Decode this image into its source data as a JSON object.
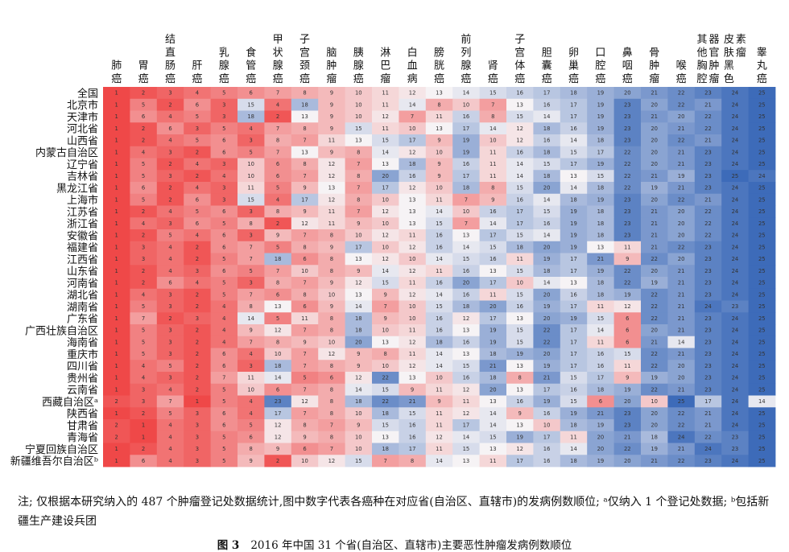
{
  "chart_data": {
    "type": "heatmap",
    "title": "2016 年中国 31 个省(自治区、直辖市)主要恶性肿瘤发病例数顺位",
    "figure_label": "图 3",
    "columns": [
      "肺癌",
      "胃癌",
      "结直肠癌",
      "肝癌",
      "乳腺癌",
      "食管癌",
      "甲状腺癌",
      "子宫颈癌",
      "脑肿瘤",
      "胰腺癌",
      "淋巴瘤",
      "白血病",
      "膀胱癌",
      "前列腺癌",
      "肾癌",
      "子宫体癌",
      "胆囊癌",
      "卵巢癌",
      "口腔癌",
      "鼻咽癌",
      "骨肿瘤",
      "喉癌",
      "其他胸腔器官肿瘤",
      "皮肤黑色素瘤",
      "睾丸癌"
    ],
    "rows": [
      "全国",
      "北京市",
      "天津市",
      "河北省",
      "山西省",
      "内蒙古自治区",
      "辽宁省",
      "吉林省",
      "黑龙江省",
      "上海市",
      "江苏省",
      "浙江省",
      "安徽省",
      "福建省",
      "江西省",
      "山东省",
      "河南省",
      "湖北省",
      "湖南省",
      "广东省",
      "广西壮族自治区",
      "海南省",
      "重庆市",
      "四川省",
      "贵州省",
      "云南省",
      "西藏自治区ᵃ",
      "陕西省",
      "甘肃省",
      "青海省",
      "宁夏回族自治区",
      "新疆维吾尔自治区ᵇ"
    ],
    "values": [
      [
        1,
        2,
        3,
        4,
        5,
        6,
        7,
        8,
        9,
        10,
        11,
        12,
        13,
        14,
        15,
        16,
        17,
        18,
        19,
        20,
        21,
        22,
        23,
        24,
        25
      ],
      [
        1,
        5,
        2,
        6,
        3,
        15,
        4,
        18,
        9,
        10,
        11,
        14,
        8,
        10,
        7,
        13,
        16,
        17,
        19,
        23,
        20,
        22,
        21,
        24,
        25
      ],
      [
        1,
        6,
        4,
        5,
        3,
        18,
        2,
        13,
        9,
        10,
        12,
        7,
        11,
        16,
        8,
        15,
        14,
        17,
        19,
        23,
        21,
        20,
        22,
        24,
        25
      ],
      [
        1,
        2,
        6,
        3,
        5,
        4,
        7,
        8,
        9,
        15,
        11,
        10,
        13,
        17,
        14,
        12,
        18,
        16,
        19,
        23,
        20,
        21,
        22,
        24,
        25
      ],
      [
        1,
        2,
        4,
        5,
        6,
        3,
        8,
        7,
        11,
        13,
        15,
        17,
        9,
        19,
        10,
        12,
        16,
        14,
        18,
        23,
        20,
        22,
        21,
        24,
        25
      ],
      [
        1,
        4,
        3,
        2,
        6,
        5,
        7,
        13,
        9,
        8,
        14,
        12,
        10,
        19,
        11,
        16,
        18,
        15,
        17,
        22,
        20,
        21,
        23,
        24,
        25
      ],
      [
        1,
        5,
        2,
        4,
        3,
        10,
        6,
        8,
        12,
        7,
        13,
        18,
        9,
        16,
        11,
        14,
        15,
        17,
        19,
        22,
        20,
        21,
        23,
        24,
        25
      ],
      [
        1,
        5,
        3,
        2,
        4,
        10,
        6,
        7,
        12,
        8,
        20,
        16,
        9,
        17,
        11,
        14,
        18,
        13,
        15,
        22,
        21,
        19,
        23,
        25,
        24
      ],
      [
        1,
        6,
        2,
        4,
        3,
        11,
        5,
        9,
        13,
        7,
        17,
        12,
        10,
        18,
        8,
        15,
        20,
        14,
        18,
        22,
        19,
        21,
        23,
        24,
        25
      ],
      [
        1,
        5,
        2,
        6,
        3,
        15,
        4,
        17,
        12,
        8,
        10,
        13,
        11,
        7,
        9,
        16,
        14,
        18,
        19,
        23,
        20,
        22,
        21,
        24,
        25
      ],
      [
        1,
        2,
        4,
        5,
        6,
        3,
        8,
        9,
        11,
        7,
        12,
        13,
        14,
        10,
        16,
        17,
        15,
        19,
        18,
        23,
        21,
        20,
        22,
        24,
        25
      ],
      [
        1,
        4,
        3,
        6,
        5,
        8,
        2,
        12,
        11,
        9,
        10,
        13,
        15,
        7,
        14,
        17,
        16,
        19,
        18,
        23,
        21,
        20,
        22,
        24,
        25
      ],
      [
        1,
        2,
        5,
        4,
        6,
        3,
        9,
        7,
        8,
        10,
        12,
        11,
        16,
        13,
        17,
        15,
        14,
        19,
        18,
        23,
        21,
        20,
        22,
        24,
        25
      ],
      [
        1,
        3,
        4,
        2,
        6,
        7,
        5,
        8,
        9,
        17,
        10,
        12,
        16,
        14,
        15,
        18,
        20,
        19,
        13,
        11,
        21,
        22,
        23,
        24,
        25
      ],
      [
        1,
        3,
        4,
        2,
        5,
        7,
        18,
        6,
        8,
        13,
        12,
        10,
        14,
        15,
        16,
        11,
        19,
        17,
        21,
        9,
        22,
        20,
        23,
        24,
        25
      ],
      [
        1,
        2,
        4,
        3,
        6,
        5,
        7,
        10,
        8,
        9,
        14,
        12,
        11,
        16,
        13,
        15,
        18,
        17,
        19,
        22,
        20,
        21,
        23,
        24,
        25
      ],
      [
        1,
        2,
        6,
        4,
        5,
        3,
        8,
        7,
        9,
        12,
        15,
        11,
        16,
        20,
        17,
        10,
        14,
        13,
        18,
        22,
        19,
        21,
        23,
        24,
        25
      ],
      [
        1,
        4,
        3,
        2,
        5,
        7,
        6,
        8,
        10,
        13,
        9,
        12,
        14,
        16,
        11,
        15,
        20,
        16,
        18,
        19,
        22,
        21,
        23,
        24,
        25
      ],
      [
        1,
        5,
        3,
        2,
        4,
        8,
        13,
        6,
        9,
        14,
        7,
        10,
        15,
        18,
        20,
        16,
        19,
        17,
        11,
        12,
        22,
        21,
        24,
        23,
        25
      ],
      [
        1,
        7,
        2,
        3,
        4,
        14,
        5,
        11,
        8,
        18,
        9,
        10,
        16,
        12,
        17,
        13,
        20,
        19,
        15,
        6,
        22,
        21,
        23,
        24,
        25
      ],
      [
        1,
        5,
        3,
        2,
        4,
        9,
        12,
        7,
        8,
        18,
        10,
        11,
        16,
        13,
        19,
        15,
        22,
        17,
        14,
        6,
        20,
        21,
        23,
        24,
        25
      ],
      [
        1,
        5,
        3,
        2,
        4,
        7,
        8,
        9,
        10,
        20,
        13,
        12,
        18,
        16,
        19,
        15,
        22,
        17,
        11,
        6,
        21,
        14,
        23,
        24,
        25
      ],
      [
        1,
        5,
        3,
        2,
        6,
        4,
        10,
        7,
        12,
        9,
        8,
        11,
        14,
        13,
        18,
        19,
        20,
        17,
        16,
        15,
        22,
        21,
        23,
        24,
        25
      ],
      [
        1,
        4,
        5,
        2,
        6,
        3,
        18,
        7,
        8,
        9,
        10,
        12,
        14,
        15,
        21,
        13,
        19,
        17,
        16,
        11,
        22,
        20,
        23,
        24,
        25
      ],
      [
        1,
        4,
        3,
        2,
        7,
        11,
        14,
        5,
        6,
        12,
        22,
        13,
        10,
        16,
        18,
        8,
        21,
        15,
        17,
        9,
        19,
        20,
        23,
        24,
        25
      ],
      [
        1,
        3,
        4,
        2,
        5,
        10,
        6,
        7,
        8,
        14,
        15,
        9,
        11,
        12,
        20,
        13,
        17,
        16,
        18,
        19,
        22,
        21,
        23,
        24,
        25
      ],
      [
        2,
        3,
        7,
        1,
        5,
        4,
        23,
        12,
        8,
        18,
        22,
        21,
        9,
        11,
        13,
        16,
        19,
        15,
        6,
        20,
        10,
        25,
        17,
        24,
        14
      ],
      [
        1,
        2,
        5,
        3,
        6,
        4,
        17,
        7,
        8,
        10,
        18,
        15,
        11,
        12,
        14,
        9,
        16,
        19,
        21,
        23,
        20,
        22,
        21,
        24,
        25
      ],
      [
        2,
        1,
        4,
        3,
        6,
        5,
        12,
        8,
        7,
        9,
        15,
        16,
        11,
        17,
        14,
        13,
        10,
        18,
        19,
        23,
        20,
        22,
        21,
        24,
        25
      ],
      [
        2,
        1,
        4,
        3,
        5,
        6,
        12,
        9,
        8,
        10,
        13,
        16,
        12,
        14,
        15,
        19,
        17,
        11,
        20,
        21,
        18,
        24,
        22,
        23,
        25
      ],
      [
        1,
        2,
        4,
        3,
        5,
        8,
        9,
        6,
        7,
        10,
        18,
        17,
        11,
        15,
        13,
        12,
        16,
        14,
        20,
        22,
        19,
        21,
        24,
        23,
        25
      ],
      [
        1,
        6,
        4,
        3,
        5,
        9,
        2,
        10,
        12,
        15,
        7,
        8,
        14,
        13,
        11,
        17,
        16,
        18,
        19,
        20,
        21,
        22,
        23,
        24,
        25
      ]
    ],
    "color_scale": {
      "low": "#ef4848",
      "mid": "#f6f3f5",
      "high": "#3d6bb9",
      "range": [
        1,
        25
      ]
    }
  },
  "note": "注; 仅根据本研究纳入的 487 个肿瘤登记处数据统计,图中数字代表各癌种在对应省(自治区、直辖市)的发病例数顺位; ᵃ仅纳入 1 个登记处数据; ᵇ包括新疆生产建设兵团",
  "caption_label": "图 3",
  "caption_text": "2016 年中国 31 个省(自治区、直辖市)主要恶性肿瘤发病例数顺位"
}
